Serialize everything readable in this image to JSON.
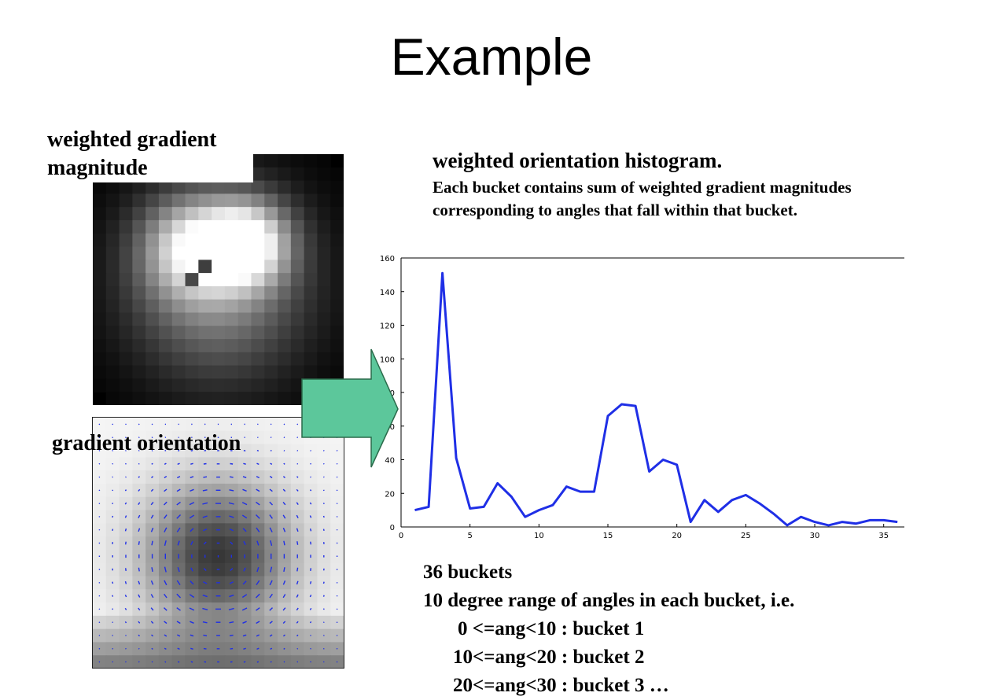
{
  "slide_title": "Example",
  "magnitude_label": "weighted gradient magnitude",
  "orientation_label": "gradient orientation",
  "histogram_title": "weighted orientation histogram.",
  "histogram_description": "Each bucket contains sum of weighted gradient magnitudes corresponding to angles that fall within that bucket.",
  "notes": {
    "buckets_count": "36 buckets",
    "range_line": "10 degree range of angles in each bucket, i.e.",
    "examples": [
      "0 <=ang<10 : bucket 1",
      "10<=ang<20 : bucket 2",
      "20<=ang<30 : bucket 3 …"
    ]
  },
  "colors": {
    "line": "#1f2fe6",
    "arrow_fill": "#5cc79b",
    "arrow_stroke": "#2a6a4a"
  },
  "chart_data": {
    "type": "line",
    "title": "",
    "xlabel": "",
    "ylabel": "",
    "x": [
      1,
      2,
      3,
      4,
      5,
      6,
      7,
      8,
      9,
      10,
      11,
      12,
      13,
      14,
      15,
      16,
      17,
      18,
      19,
      20,
      21,
      22,
      23,
      24,
      25,
      26,
      27,
      28,
      29,
      30,
      31,
      32,
      33,
      34,
      35,
      36
    ],
    "series": [
      {
        "values": [
          10,
          12,
          151,
          41,
          11,
          12,
          26,
          18,
          6,
          10,
          13,
          24,
          21,
          21,
          66,
          73,
          72,
          33,
          40,
          37,
          3,
          16,
          9,
          16,
          19,
          14,
          8,
          1,
          6,
          3,
          1,
          3,
          2,
          4,
          4,
          3
        ]
      }
    ],
    "xticks": [
      0,
      5,
      10,
      15,
      20,
      25,
      30,
      35
    ],
    "yticks": [
      0,
      20,
      40,
      60,
      80,
      100,
      120,
      140,
      160
    ],
    "xlim": [
      0,
      36.5
    ],
    "ylim": [
      0,
      160
    ],
    "grid": false
  }
}
